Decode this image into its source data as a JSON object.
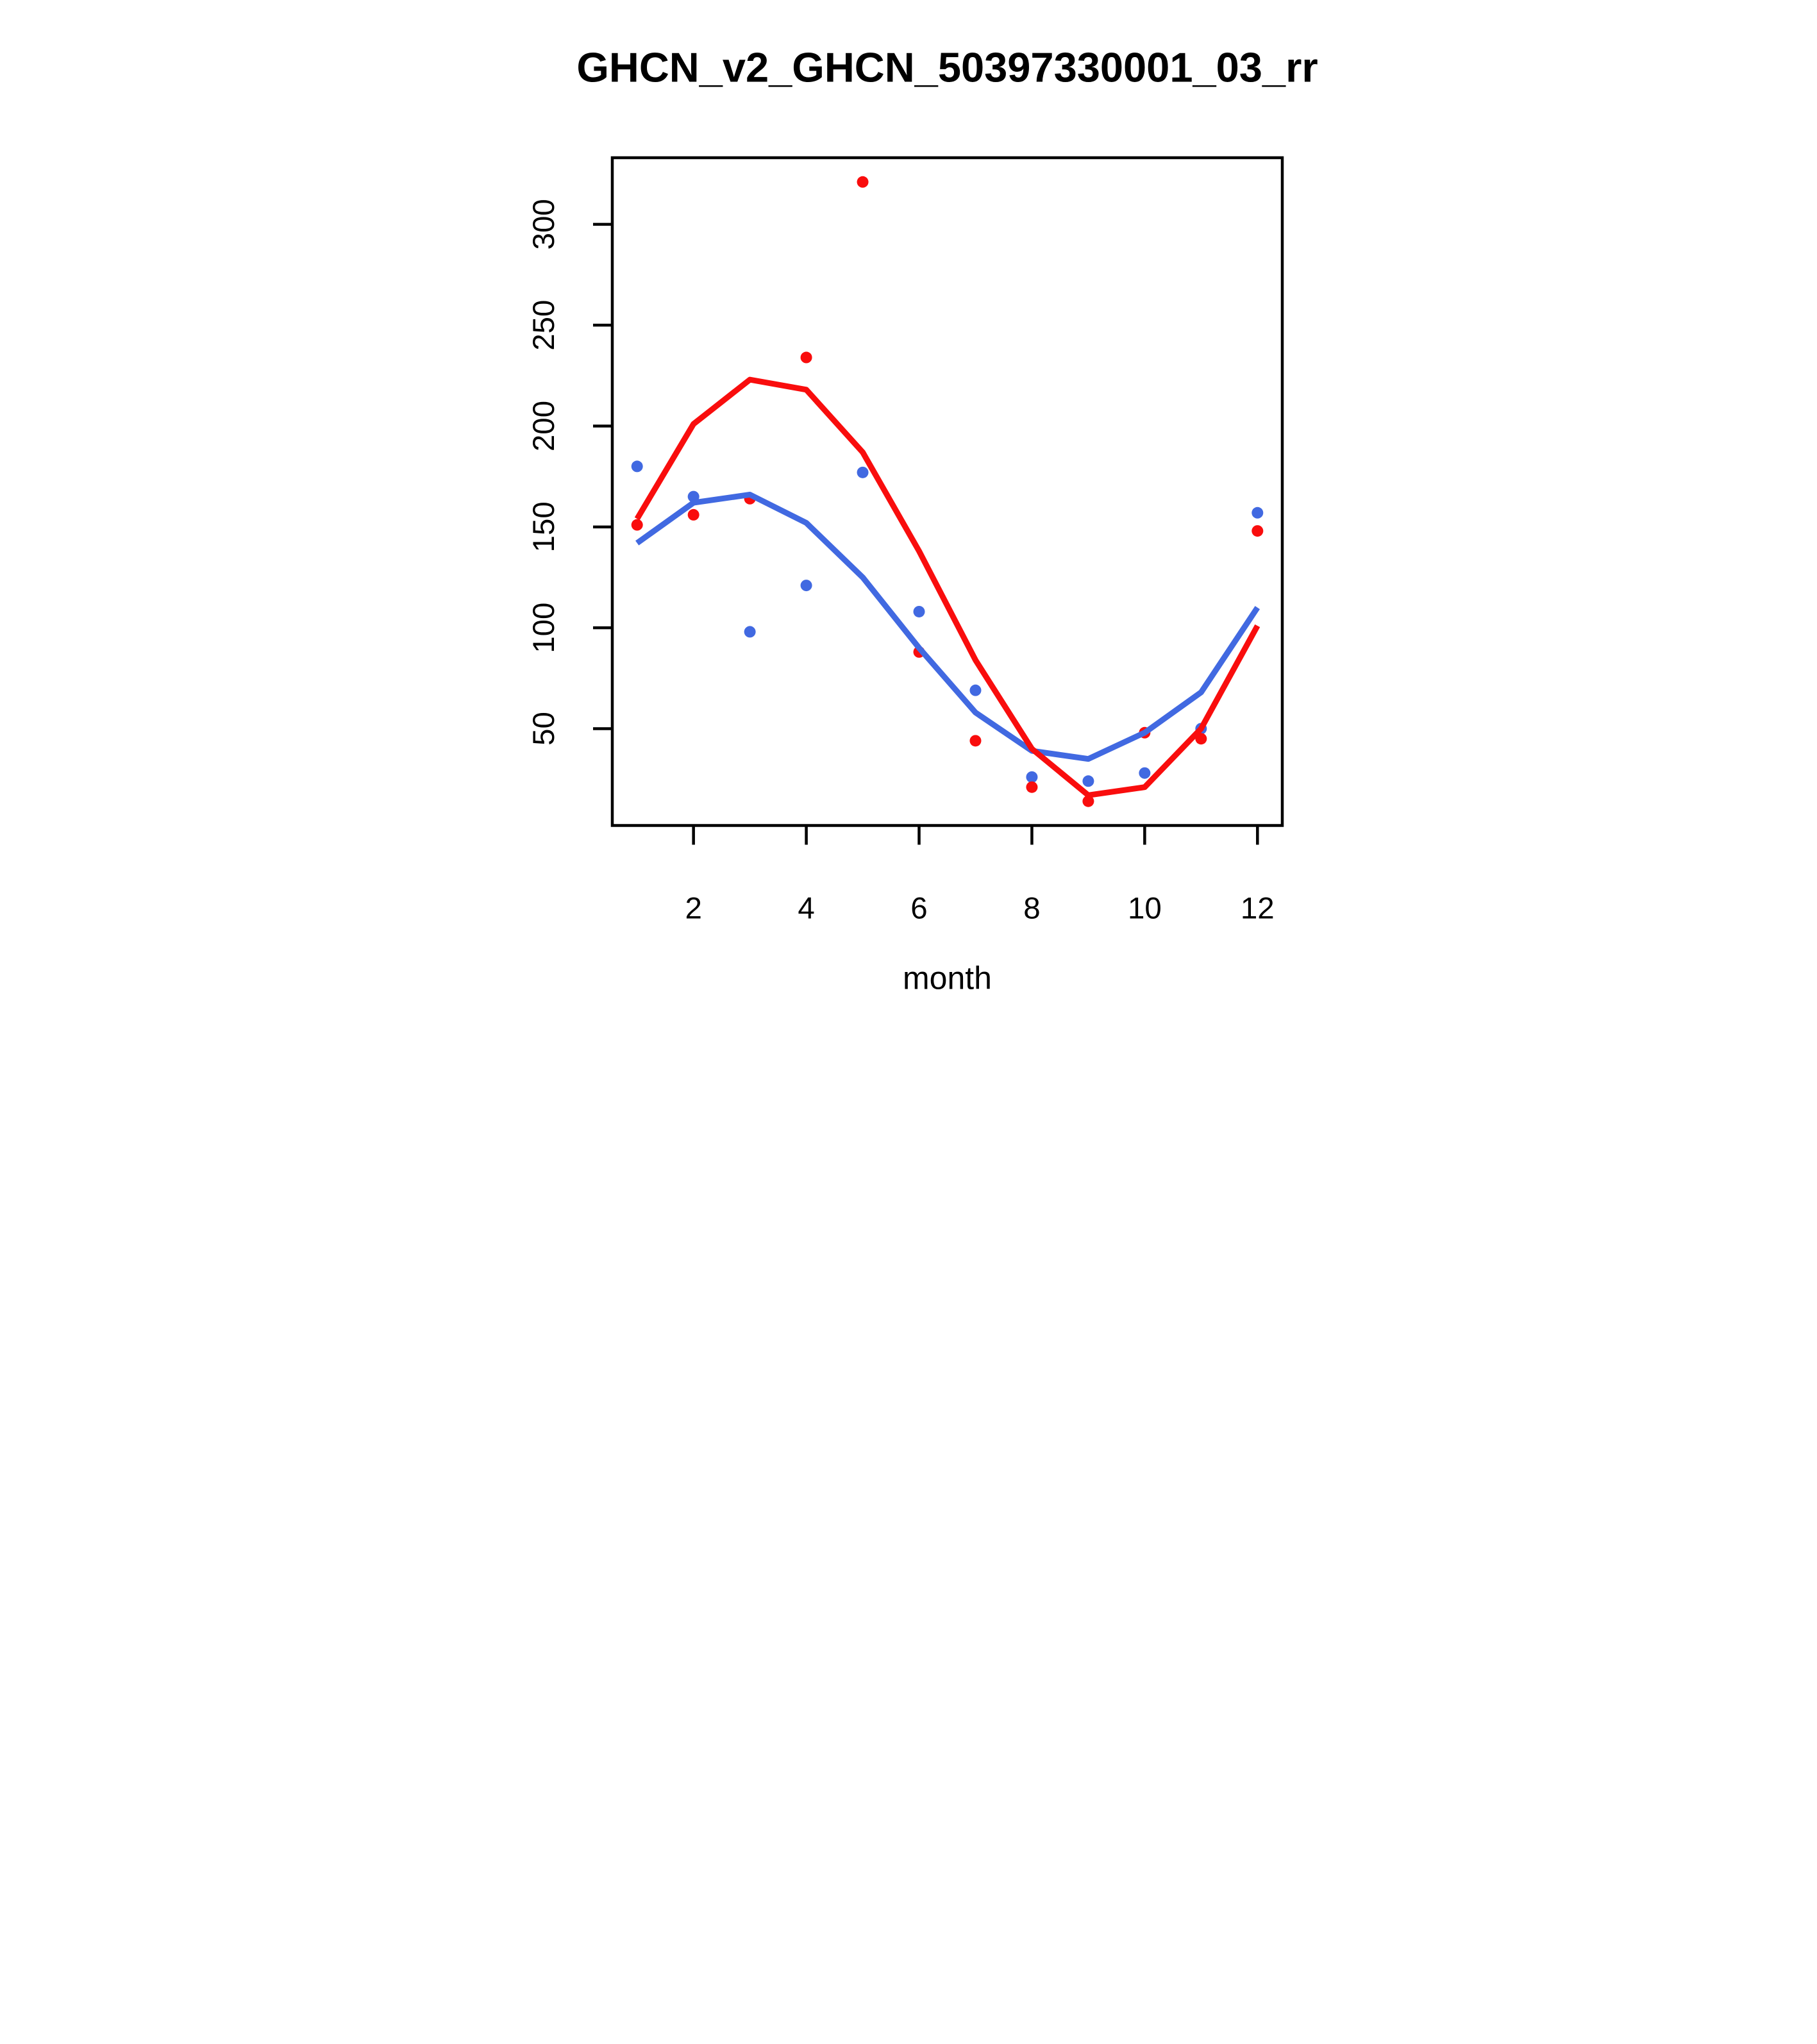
{
  "chart_data": {
    "type": "scatter",
    "title": "GHCN_v2_GHCN_50397330001_03_rr",
    "xlabel": "month",
    "ylabel": "",
    "x_ticks": [
      2,
      4,
      6,
      8,
      10,
      12
    ],
    "y_ticks": [
      50,
      100,
      150,
      200,
      250,
      300
    ],
    "xlim": [
      0.56,
      12.44
    ],
    "ylim": [
      2,
      333
    ],
    "grid": false,
    "legend": "none",
    "categories": [
      1,
      2,
      3,
      4,
      5,
      6,
      7,
      8,
      9,
      10,
      11,
      12
    ],
    "colors": {
      "blue": "#4169E1",
      "red": "#F90D0D",
      "axis": "#000000"
    },
    "series": [
      {
        "name": "blue-points",
        "kind": "points",
        "color": "#4169E1",
        "values": [
          180,
          165,
          98,
          121,
          177,
          108,
          69,
          26,
          24,
          28,
          50,
          157
        ]
      },
      {
        "name": "red-points",
        "kind": "points",
        "color": "#F90D0D",
        "values": [
          151,
          156,
          164,
          234,
          321,
          88,
          44,
          21,
          14,
          48,
          45,
          148
        ]
      },
      {
        "name": "blue-line",
        "kind": "line",
        "color": "#4169E1",
        "values": [
          142,
          162,
          166,
          152,
          125,
          90,
          58,
          39,
          35,
          48,
          68,
          110
        ]
      },
      {
        "name": "red-line",
        "kind": "line",
        "color": "#F90D0D",
        "values": [
          154,
          201,
          223,
          218,
          187,
          138,
          84,
          40,
          17,
          21,
          50,
          101
        ]
      }
    ]
  }
}
